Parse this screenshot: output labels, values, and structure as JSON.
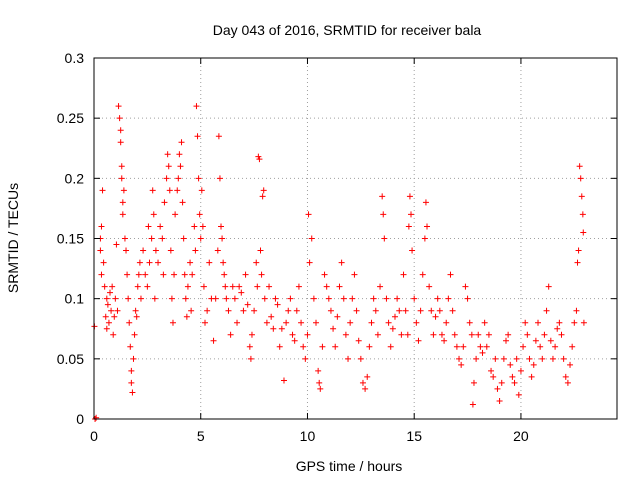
{
  "chart_data": {
    "type": "scatter",
    "title": "Day 043 of 2016, SRMTID for receiver bala",
    "xlabel": "GPS time / hours",
    "ylabel": "SRMTID / TECUs",
    "xlim": [
      0,
      24.5
    ],
    "ylim": [
      0,
      0.3
    ],
    "xticks": [
      0,
      5,
      10,
      15,
      20
    ],
    "xtick_labels": [
      "0",
      "5",
      "10",
      "15",
      "20"
    ],
    "yticks": [
      0,
      0.05,
      0.1,
      0.15,
      0.2,
      0.25,
      0.3
    ],
    "ytick_labels": [
      "0",
      "0.05",
      "0.1",
      "0.15",
      "0.2",
      "0.25",
      "0.3"
    ],
    "grid": true,
    "marker": "+",
    "color": "#ff0000",
    "series": [
      {
        "name": "SRMTID",
        "points": [
          [
            0.02,
            0.077
          ],
          [
            0.05,
            0.0
          ],
          [
            0.1,
            0.001
          ],
          [
            0.3,
            0.14
          ],
          [
            0.3,
            0.15
          ],
          [
            0.35,
            0.16
          ],
          [
            0.35,
            0.12
          ],
          [
            0.4,
            0.19
          ],
          [
            0.45,
            0.13
          ],
          [
            0.5,
            0.11
          ],
          [
            0.55,
            0.085
          ],
          [
            0.6,
            0.075
          ],
          [
            0.6,
            0.1
          ],
          [
            0.65,
            0.095
          ],
          [
            0.7,
            0.08
          ],
          [
            0.75,
            0.105
          ],
          [
            0.8,
            0.09
          ],
          [
            0.85,
            0.11
          ],
          [
            0.9,
            0.07
          ],
          [
            0.95,
            0.085
          ],
          [
            1.0,
            0.1
          ],
          [
            1.05,
            0.145
          ],
          [
            1.1,
            0.09
          ],
          [
            1.15,
            0.26
          ],
          [
            1.2,
            0.25
          ],
          [
            1.25,
            0.24
          ],
          [
            1.25,
            0.23
          ],
          [
            1.3,
            0.21
          ],
          [
            1.3,
            0.2
          ],
          [
            1.35,
            0.18
          ],
          [
            1.35,
            0.17
          ],
          [
            1.4,
            0.19
          ],
          [
            1.45,
            0.15
          ],
          [
            1.5,
            0.14
          ],
          [
            1.55,
            0.12
          ],
          [
            1.6,
            0.1
          ],
          [
            1.65,
            0.08
          ],
          [
            1.7,
            0.06
          ],
          [
            1.75,
            0.04
          ],
          [
            1.75,
            0.03
          ],
          [
            1.8,
            0.022
          ],
          [
            1.85,
            0.05
          ],
          [
            1.9,
            0.07
          ],
          [
            1.95,
            0.09
          ],
          [
            2.0,
            0.085
          ],
          [
            2.05,
            0.11
          ],
          [
            2.1,
            0.12
          ],
          [
            2.15,
            0.13
          ],
          [
            2.2,
            0.1
          ],
          [
            2.3,
            0.14
          ],
          [
            2.4,
            0.12
          ],
          [
            2.5,
            0.11
          ],
          [
            2.55,
            0.16
          ],
          [
            2.6,
            0.13
          ],
          [
            2.7,
            0.15
          ],
          [
            2.75,
            0.19
          ],
          [
            2.8,
            0.17
          ],
          [
            2.85,
            0.1
          ],
          [
            2.9,
            0.14
          ],
          [
            3.0,
            0.13
          ],
          [
            3.1,
            0.16
          ],
          [
            3.2,
            0.15
          ],
          [
            3.25,
            0.12
          ],
          [
            3.3,
            0.18
          ],
          [
            3.4,
            0.2
          ],
          [
            3.45,
            0.22
          ],
          [
            3.5,
            0.21
          ],
          [
            3.55,
            0.19
          ],
          [
            3.6,
            0.14
          ],
          [
            3.65,
            0.1
          ],
          [
            3.7,
            0.08
          ],
          [
            3.75,
            0.12
          ],
          [
            3.8,
            0.17
          ],
          [
            3.9,
            0.19
          ],
          [
            3.95,
            0.2
          ],
          [
            4.0,
            0.22
          ],
          [
            4.05,
            0.21
          ],
          [
            4.1,
            0.23
          ],
          [
            4.15,
            0.18
          ],
          [
            4.2,
            0.15
          ],
          [
            4.25,
            0.12
          ],
          [
            4.3,
            0.1
          ],
          [
            4.35,
            0.085
          ],
          [
            4.4,
            0.11
          ],
          [
            4.5,
            0.13
          ],
          [
            4.55,
            0.09
          ],
          [
            4.6,
            0.12
          ],
          [
            4.7,
            0.16
          ],
          [
            4.75,
            0.14
          ],
          [
            4.8,
            0.26
          ],
          [
            4.85,
            0.235
          ],
          [
            4.9,
            0.2
          ],
          [
            4.95,
            0.17
          ],
          [
            5.0,
            0.15
          ],
          [
            5.05,
            0.19
          ],
          [
            5.1,
            0.16
          ],
          [
            5.15,
            0.11
          ],
          [
            5.2,
            0.08
          ],
          [
            5.3,
            0.09
          ],
          [
            5.4,
            0.13
          ],
          [
            5.5,
            0.1
          ],
          [
            5.6,
            0.065
          ],
          [
            5.7,
            0.1
          ],
          [
            5.8,
            0.14
          ],
          [
            5.85,
            0.235
          ],
          [
            5.9,
            0.2
          ],
          [
            5.95,
            0.16
          ],
          [
            6.0,
            0.15
          ],
          [
            6.05,
            0.13
          ],
          [
            6.1,
            0.12
          ],
          [
            6.15,
            0.11
          ],
          [
            6.2,
            0.1
          ],
          [
            6.3,
            0.09
          ],
          [
            6.4,
            0.07
          ],
          [
            6.5,
            0.11
          ],
          [
            6.6,
            0.1
          ],
          [
            6.7,
            0.08
          ],
          [
            6.8,
            0.11
          ],
          [
            6.9,
            0.105
          ],
          [
            7.0,
            0.09
          ],
          [
            7.1,
            0.12
          ],
          [
            7.2,
            0.095
          ],
          [
            7.3,
            0.06
          ],
          [
            7.35,
            0.05
          ],
          [
            7.4,
            0.07
          ],
          [
            7.5,
            0.09
          ],
          [
            7.6,
            0.13
          ],
          [
            7.65,
            0.11
          ],
          [
            7.7,
            0.218
          ],
          [
            7.75,
            0.216
          ],
          [
            7.8,
            0.14
          ],
          [
            7.85,
            0.12
          ],
          [
            7.9,
            0.185
          ],
          [
            7.95,
            0.19
          ],
          [
            8.0,
            0.1
          ],
          [
            8.1,
            0.08
          ],
          [
            8.2,
            0.11
          ],
          [
            8.3,
            0.085
          ],
          [
            8.4,
            0.075
          ],
          [
            8.5,
            0.1
          ],
          [
            8.6,
            0.095
          ],
          [
            8.7,
            0.06
          ],
          [
            8.8,
            0.075
          ],
          [
            8.9,
            0.032
          ],
          [
            9.0,
            0.08
          ],
          [
            9.1,
            0.09
          ],
          [
            9.2,
            0.1
          ],
          [
            9.3,
            0.07
          ],
          [
            9.4,
            0.065
          ],
          [
            9.5,
            0.09
          ],
          [
            9.6,
            0.11
          ],
          [
            9.7,
            0.08
          ],
          [
            9.8,
            0.06
          ],
          [
            9.9,
            0.05
          ],
          [
            10.0,
            0.07
          ],
          [
            10.05,
            0.17
          ],
          [
            10.1,
            0.13
          ],
          [
            10.2,
            0.15
          ],
          [
            10.3,
            0.1
          ],
          [
            10.4,
            0.08
          ],
          [
            10.5,
            0.04
          ],
          [
            10.55,
            0.03
          ],
          [
            10.6,
            0.025
          ],
          [
            10.7,
            0.06
          ],
          [
            10.8,
            0.12
          ],
          [
            10.9,
            0.11
          ],
          [
            11.0,
            0.1
          ],
          [
            11.1,
            0.09
          ],
          [
            11.2,
            0.075
          ],
          [
            11.3,
            0.06
          ],
          [
            11.4,
            0.085
          ],
          [
            11.5,
            0.11
          ],
          [
            11.6,
            0.13
          ],
          [
            11.7,
            0.1
          ],
          [
            11.8,
            0.07
          ],
          [
            11.9,
            0.05
          ],
          [
            12.0,
            0.08
          ],
          [
            12.1,
            0.1
          ],
          [
            12.2,
            0.12
          ],
          [
            12.3,
            0.09
          ],
          [
            12.4,
            0.065
          ],
          [
            12.5,
            0.05
          ],
          [
            12.6,
            0.03
          ],
          [
            12.7,
            0.025
          ],
          [
            12.8,
            0.035
          ],
          [
            12.9,
            0.06
          ],
          [
            13.0,
            0.08
          ],
          [
            13.1,
            0.1
          ],
          [
            13.2,
            0.09
          ],
          [
            13.3,
            0.07
          ],
          [
            13.4,
            0.11
          ],
          [
            13.5,
            0.185
          ],
          [
            13.55,
            0.17
          ],
          [
            13.6,
            0.15
          ],
          [
            13.7,
            0.1
          ],
          [
            13.8,
            0.08
          ],
          [
            13.9,
            0.06
          ],
          [
            14.0,
            0.075
          ],
          [
            14.1,
            0.085
          ],
          [
            14.2,
            0.1
          ],
          [
            14.3,
            0.09
          ],
          [
            14.4,
            0.07
          ],
          [
            14.5,
            0.12
          ],
          [
            14.6,
            0.09
          ],
          [
            14.7,
            0.07
          ],
          [
            14.75,
            0.16
          ],
          [
            14.8,
            0.185
          ],
          [
            14.85,
            0.17
          ],
          [
            14.9,
            0.14
          ],
          [
            15.0,
            0.1
          ],
          [
            15.1,
            0.08
          ],
          [
            15.2,
            0.065
          ],
          [
            15.3,
            0.09
          ],
          [
            15.4,
            0.12
          ],
          [
            15.5,
            0.15
          ],
          [
            15.55,
            0.18
          ],
          [
            15.6,
            0.16
          ],
          [
            15.7,
            0.11
          ],
          [
            15.8,
            0.09
          ],
          [
            15.9,
            0.07
          ],
          [
            16.0,
            0.085
          ],
          [
            16.1,
            0.1
          ],
          [
            16.2,
            0.09
          ],
          [
            16.3,
            0.07
          ],
          [
            16.4,
            0.065
          ],
          [
            16.5,
            0.08
          ],
          [
            16.6,
            0.1
          ],
          [
            16.7,
            0.12
          ],
          [
            16.8,
            0.09
          ],
          [
            16.9,
            0.07
          ],
          [
            17.0,
            0.06
          ],
          [
            17.1,
            0.05
          ],
          [
            17.2,
            0.045
          ],
          [
            17.3,
            0.06
          ],
          [
            17.4,
            0.11
          ],
          [
            17.5,
            0.1
          ],
          [
            17.6,
            0.08
          ],
          [
            17.7,
            0.07
          ],
          [
            17.75,
            0.012
          ],
          [
            17.8,
            0.03
          ],
          [
            17.9,
            0.05
          ],
          [
            18.0,
            0.07
          ],
          [
            18.1,
            0.06
          ],
          [
            18.2,
            0.055
          ],
          [
            18.3,
            0.08
          ],
          [
            18.4,
            0.06
          ],
          [
            18.5,
            0.07
          ],
          [
            18.6,
            0.04
          ],
          [
            18.7,
            0.035
          ],
          [
            18.8,
            0.05
          ],
          [
            18.9,
            0.025
          ],
          [
            19.0,
            0.015
          ],
          [
            19.1,
            0.03
          ],
          [
            19.2,
            0.05
          ],
          [
            19.3,
            0.065
          ],
          [
            19.4,
            0.07
          ],
          [
            19.5,
            0.045
          ],
          [
            19.6,
            0.035
          ],
          [
            19.7,
            0.03
          ],
          [
            19.8,
            0.05
          ],
          [
            19.9,
            0.02
          ],
          [
            20.0,
            0.04
          ],
          [
            20.1,
            0.06
          ],
          [
            20.2,
            0.08
          ],
          [
            20.3,
            0.07
          ],
          [
            20.4,
            0.05
          ],
          [
            20.5,
            0.035
          ],
          [
            20.6,
            0.045
          ],
          [
            20.7,
            0.065
          ],
          [
            20.8,
            0.08
          ],
          [
            20.9,
            0.06
          ],
          [
            21.0,
            0.05
          ],
          [
            21.1,
            0.07
          ],
          [
            21.2,
            0.09
          ],
          [
            21.3,
            0.11
          ],
          [
            21.4,
            0.065
          ],
          [
            21.5,
            0.05
          ],
          [
            21.6,
            0.06
          ],
          [
            21.7,
            0.075
          ],
          [
            21.8,
            0.08
          ],
          [
            21.9,
            0.07
          ],
          [
            22.0,
            0.05
          ],
          [
            22.1,
            0.035
          ],
          [
            22.2,
            0.03
          ],
          [
            22.3,
            0.045
          ],
          [
            22.4,
            0.06
          ],
          [
            22.5,
            0.08
          ],
          [
            22.6,
            0.09
          ],
          [
            22.65,
            0.13
          ],
          [
            22.7,
            0.14
          ],
          [
            22.75,
            0.21
          ],
          [
            22.8,
            0.2
          ],
          [
            22.85,
            0.185
          ],
          [
            22.9,
            0.17
          ],
          [
            22.92,
            0.155
          ],
          [
            22.95,
            0.08
          ]
        ]
      }
    ]
  }
}
